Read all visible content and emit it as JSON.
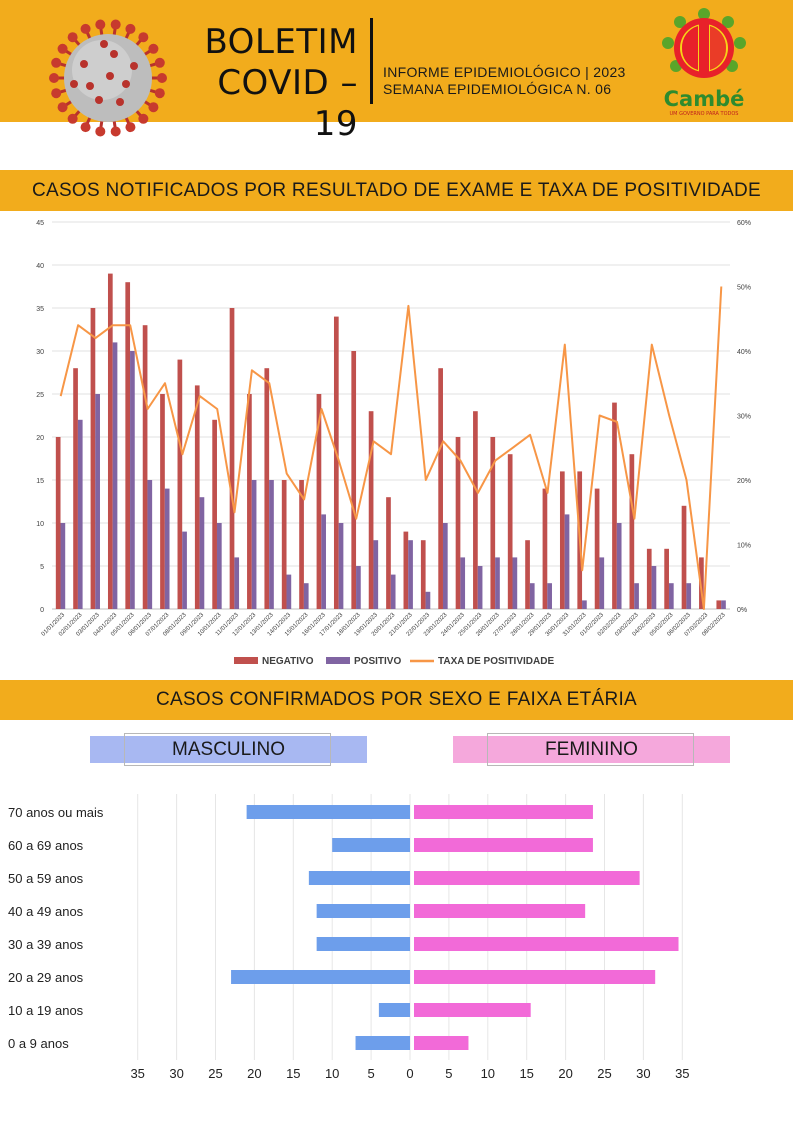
{
  "header": {
    "title_line1": "BOLETIM",
    "title_line2": "COVID – 19",
    "informe": "INFORME EPIDEMIOLÓGICO | 2023",
    "semana": "SEMANA EPIDEMIOLÓGICA  N. 06",
    "logo_text": "Cambé",
    "logo_tagline": "UM GOVERNO PARA TODOS"
  },
  "section1": {
    "title": "CASOS NOTIFICADOS POR RESULTADO DE EXAME E TAXA DE POSITIVIDADE"
  },
  "section2": {
    "title": "CASOS CONFIRMADOS POR SEXO E FAIXA ETÁRIA",
    "male_label": "MASCULINO",
    "female_label": "FEMININO"
  },
  "colors": {
    "band": "#f2ac1c",
    "negativo": "#c0504d",
    "positivo": "#8064a2",
    "taxa": "#f79646",
    "male": "#6d9eeb",
    "female": "#f26ad8"
  },
  "chart_data": [
    {
      "type": "bar",
      "categories": [
        "01/01/2023",
        "02/01/2023",
        "03/01/2023",
        "04/01/2023",
        "05/01/2023",
        "06/01/2023",
        "07/01/2023",
        "08/01/2023",
        "09/01/2023",
        "10/01/2023",
        "11/01/2023",
        "12/01/2023",
        "13/01/2023",
        "14/01/2023",
        "15/01/2023",
        "16/01/2023",
        "17/01/2023",
        "18/01/2023",
        "19/01/2023",
        "20/01/2023",
        "21/01/2023",
        "22/01/2023",
        "23/01/2023",
        "24/01/2023",
        "25/01/2023",
        "26/01/2023",
        "27/01/2023",
        "28/01/2023",
        "29/01/2023",
        "30/01/2023",
        "31/01/2023",
        "01/02/2023",
        "02/02/2023",
        "03/02/2023",
        "04/02/2023",
        "05/02/2023",
        "06/02/2023",
        "07/02/2023",
        "08/02/2023"
      ],
      "series": [
        {
          "name": "NEGATIVO",
          "values": [
            20,
            28,
            35,
            39,
            38,
            33,
            25,
            29,
            26,
            22,
            35,
            25,
            28,
            15,
            15,
            25,
            34,
            30,
            23,
            13,
            9,
            8,
            28,
            20,
            23,
            20,
            18,
            8,
            14,
            16,
            16,
            14,
            24,
            18,
            7,
            7,
            12,
            6,
            1
          ]
        },
        {
          "name": "POSITIVO",
          "values": [
            10,
            22,
            25,
            31,
            30,
            15,
            14,
            9,
            13,
            10,
            6,
            15,
            15,
            4,
            3,
            11,
            10,
            5,
            8,
            4,
            8,
            2,
            10,
            6,
            5,
            6,
            6,
            3,
            3,
            11,
            1,
            6,
            10,
            3,
            5,
            3,
            3,
            0,
            1
          ]
        },
        {
          "name": "TAXA DE POSITIVIDADE",
          "axis": "right",
          "values": [
            33,
            44,
            42,
            44,
            44,
            31,
            35,
            24,
            33,
            31,
            15,
            37,
            35,
            21,
            17,
            31,
            23,
            14,
            26,
            24,
            47,
            20,
            26,
            23,
            18,
            23,
            25,
            27,
            18,
            41,
            6,
            30,
            29,
            14,
            41,
            30,
            20,
            0,
            50
          ]
        }
      ],
      "yticks_left": [
        "0",
        "5",
        "10",
        "15",
        "20",
        "25",
        "30",
        "35",
        "40",
        "45"
      ],
      "yticks_right": [
        "0%",
        "10%",
        "20%",
        "30%",
        "40%",
        "50%",
        "60%"
      ],
      "ylim": [
        0,
        45
      ],
      "ylim_right": [
        0,
        60
      ],
      "legend": "bottom",
      "grid": true
    },
    {
      "type": "bar",
      "orientation": "horizontal",
      "categories": [
        "70 anos ou mais",
        "60 a 69 anos",
        "50 a 59 anos",
        "40 a 49 anos",
        "30 a 39 anos",
        "20 a 29 anos",
        "10 a 19 anos",
        "0 a 9 anos"
      ],
      "series": [
        {
          "name": "MASCULINO",
          "values": [
            21,
            10,
            13,
            12,
            12,
            23,
            4,
            7
          ]
        },
        {
          "name": "FEMININO",
          "values": [
            23,
            23,
            29,
            22,
            34,
            31,
            15,
            7
          ]
        }
      ],
      "xticks": [
        "35",
        "30",
        "25",
        "20",
        "15",
        "10",
        "5",
        "0",
        "5",
        "10",
        "15",
        "20",
        "25",
        "30",
        "35"
      ],
      "xlim": [
        -35,
        35
      ],
      "grid": true
    }
  ]
}
